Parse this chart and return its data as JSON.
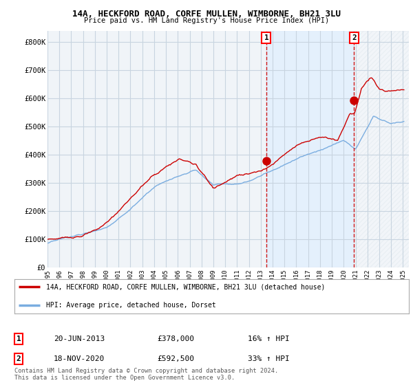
{
  "title1": "14A, HECKFORD ROAD, CORFE MULLEN, WIMBORNE, BH21 3LU",
  "title2": "Price paid vs. HM Land Registry's House Price Index (HPI)",
  "ylabel_ticks": [
    "£0",
    "£100K",
    "£200K",
    "£300K",
    "£400K",
    "£500K",
    "£600K",
    "£700K",
    "£800K"
  ],
  "ytick_values": [
    0,
    100000,
    200000,
    300000,
    400000,
    500000,
    600000,
    700000,
    800000
  ],
  "ylim": [
    0,
    840000
  ],
  "xlim_start": 1995.0,
  "xlim_end": 2025.5,
  "red_line_color": "#cc0000",
  "blue_line_color": "#7aade0",
  "marker1_x": 2013.47,
  "marker1_y": 378000,
  "marker2_x": 2020.88,
  "marker2_y": 592500,
  "marker1_label": "1",
  "marker2_label": "2",
  "dashed_line1_x": 2013.47,
  "dashed_line2_x": 2020.88,
  "legend_line1": "14A, HECKFORD ROAD, CORFE MULLEN, WIMBORNE, BH21 3LU (detached house)",
  "legend_line2": "HPI: Average price, detached house, Dorset",
  "table_row1_num": "1",
  "table_row1_date": "20-JUN-2013",
  "table_row1_price": "£378,000",
  "table_row1_hpi": "16% ↑ HPI",
  "table_row2_num": "2",
  "table_row2_date": "18-NOV-2020",
  "table_row2_price": "£592,500",
  "table_row2_hpi": "33% ↑ HPI",
  "footer": "Contains HM Land Registry data © Crown copyright and database right 2024.\nThis data is licensed under the Open Government Licence v3.0.",
  "background_color": "#ffffff",
  "plot_bg_color": "#f0f4f8",
  "grid_color": "#c8d4e0",
  "fill_color": "#ddeeff",
  "fill_alpha": 0.6,
  "hatch_color": "#c8d4e0",
  "xtick_years": [
    1995,
    1996,
    1997,
    1998,
    1999,
    2000,
    2001,
    2002,
    2003,
    2004,
    2005,
    2006,
    2007,
    2008,
    2009,
    2010,
    2011,
    2012,
    2013,
    2014,
    2015,
    2016,
    2017,
    2018,
    2019,
    2020,
    2021,
    2022,
    2023,
    2024,
    2025
  ]
}
